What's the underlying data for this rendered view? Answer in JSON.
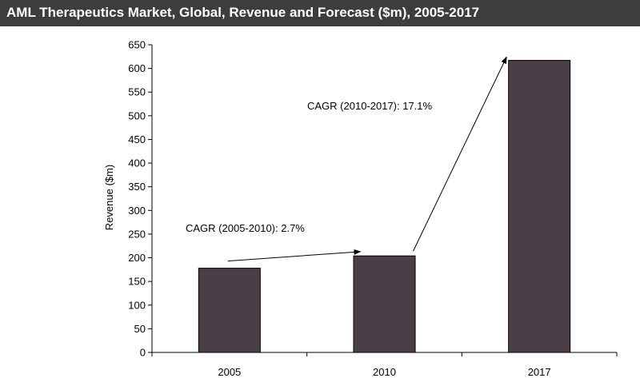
{
  "title": "AML Therapeutics Market, Global, Revenue and Forecast ($m), 2005-2017",
  "chart_data": {
    "type": "bar",
    "title": "AML Therapeutics Market, Global, Revenue and Forecast ($m), 2005-2017",
    "xlabel": "",
    "ylabel": "Revenue ($m)",
    "categories": [
      "2005",
      "2010",
      "2017"
    ],
    "values": [
      178,
      204,
      617
    ],
    "ylim": [
      0,
      650
    ],
    "yticks": [
      0,
      50,
      100,
      150,
      200,
      250,
      300,
      350,
      400,
      450,
      500,
      550,
      600,
      650
    ],
    "grid": false,
    "bar_color": "#4a3f47",
    "annotations": [
      {
        "text": "CAGR (2005-2010): 2.7%",
        "from_category": "2005",
        "to_category": "2010"
      },
      {
        "text": "CAGR (2010-2017): 17.1%",
        "from_category": "2010",
        "to_category": "2017"
      }
    ]
  }
}
